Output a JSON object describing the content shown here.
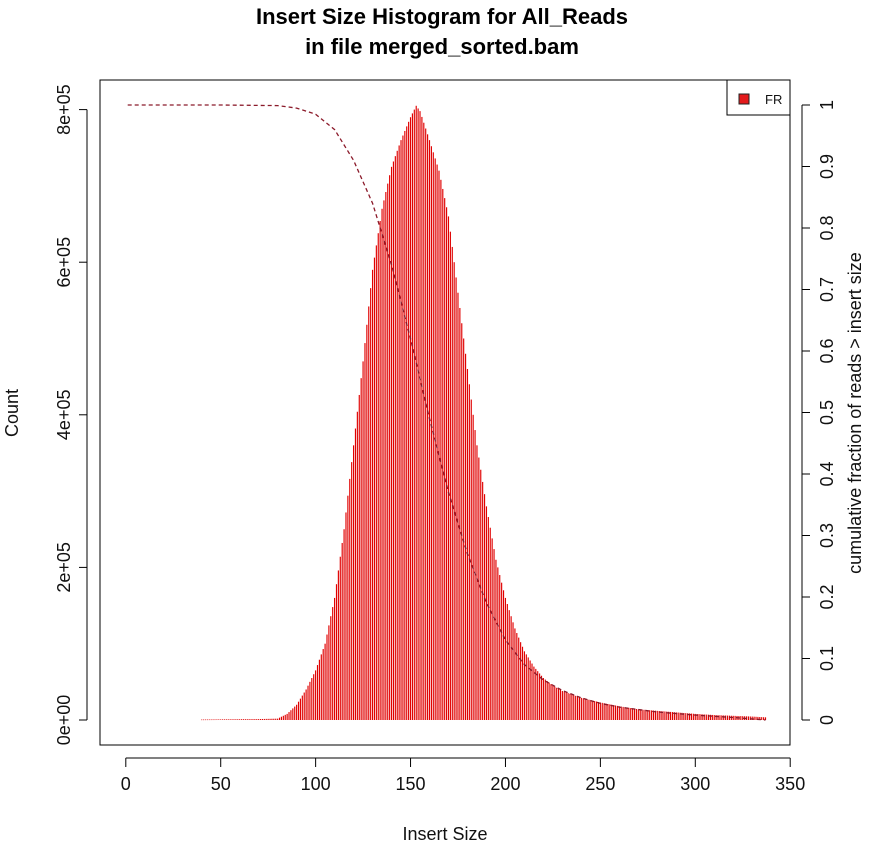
{
  "chart_data": {
    "type": "bar",
    "title": "Insert Size Histogram for All_Reads",
    "subtitle": "in file merged_sorted.bam",
    "xlabel": "Insert Size",
    "ylabel": "Count",
    "y2label": "cumulative fraction of reads > insert size",
    "xlim": [
      0,
      350
    ],
    "ylim": [
      0,
      800000
    ],
    "y2lim": [
      0,
      1
    ],
    "x_ticks": [
      "0",
      "50",
      "100",
      "150",
      "200",
      "250",
      "300",
      "350"
    ],
    "y_ticks": [
      "0e+00",
      "2e+05",
      "4e+05",
      "6e+05",
      "8e+05"
    ],
    "y2_ticks": [
      "0",
      "0.1",
      "0.2",
      "0.3",
      "0.4",
      "0.5",
      "0.6",
      "0.7",
      "0.8",
      "0.9",
      "1"
    ],
    "legend": {
      "position": "top-right",
      "entries": [
        {
          "label": "FR",
          "color": "#e31a1c"
        }
      ]
    },
    "grid": false,
    "series": [
      {
        "name": "FR",
        "style": "histogram",
        "color": "#e00000",
        "x": [
          40,
          50,
          60,
          70,
          80,
          85,
          90,
          95,
          100,
          105,
          110,
          115,
          120,
          125,
          130,
          135,
          140,
          145,
          150,
          153,
          155,
          160,
          165,
          170,
          175,
          180,
          185,
          190,
          195,
          200,
          205,
          210,
          215,
          220,
          225,
          230,
          240,
          250,
          260,
          270,
          280,
          290,
          300,
          310,
          320,
          330,
          337
        ],
        "y": [
          600,
          800,
          1000,
          1200,
          1800,
          8000,
          20000,
          40000,
          65000,
          100000,
          160000,
          250000,
          360000,
          470000,
          590000,
          670000,
          725000,
          760000,
          790000,
          805000,
          798000,
          760000,
          720000,
          660000,
          560000,
          460000,
          360000,
          280000,
          210000,
          160000,
          120000,
          90000,
          70000,
          55000,
          45000,
          38000,
          29000,
          23000,
          18000,
          14000,
          12000,
          10000,
          8000,
          6500,
          5500,
          4500,
          3500
        ]
      },
      {
        "name": "",
        "style": "dashed-line",
        "axis": "right",
        "color": "#8b1a2a",
        "x": [
          1,
          50,
          80,
          90,
          100,
          110,
          120,
          130,
          140,
          150,
          160,
          170,
          180,
          190,
          200,
          210,
          220,
          230,
          240,
          250,
          260,
          280,
          300,
          320,
          337
        ],
        "y": [
          1.0,
          1.0,
          0.999,
          0.995,
          0.985,
          0.96,
          0.91,
          0.84,
          0.74,
          0.62,
          0.49,
          0.37,
          0.27,
          0.19,
          0.13,
          0.09,
          0.065,
          0.048,
          0.036,
          0.027,
          0.021,
          0.013,
          0.008,
          0.004,
          0.0
        ]
      }
    ]
  }
}
